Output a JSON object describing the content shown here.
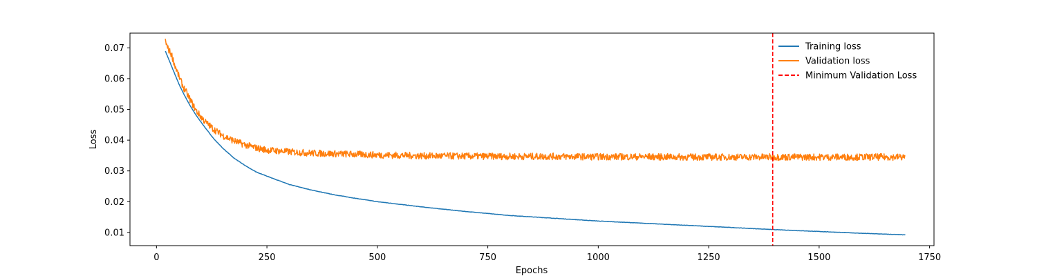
{
  "chart_data": {
    "type": "line",
    "title": "",
    "xlabel": "Epochs",
    "ylabel": "Loss",
    "xlim": [
      -60,
      1760
    ],
    "ylim": [
      0.0057,
      0.0748
    ],
    "xticks": [
      0,
      250,
      500,
      750,
      1000,
      1250,
      1500,
      1750
    ],
    "xtick_labels": [
      "0",
      "250",
      "500",
      "750",
      "1000",
      "1250",
      "1500",
      "1750"
    ],
    "yticks": [
      0.01,
      0.02,
      0.03,
      0.04,
      0.05,
      0.06,
      0.07
    ],
    "ytick_labels": [
      "0.01",
      "0.02",
      "0.03",
      "0.04",
      "0.05",
      "0.06",
      "0.07"
    ],
    "grid": false,
    "legend_position": "top-right",
    "series": [
      {
        "name": "Training loss",
        "color": "#1f77b4",
        "x": [
          20,
          30,
          40,
          50,
          60,
          75,
          90,
          110,
          130,
          150,
          175,
          200,
          225,
          250,
          300,
          350,
          400,
          450,
          500,
          600,
          700,
          800,
          900,
          1000,
          1100,
          1200,
          1300,
          1400,
          1500,
          1600,
          1695
        ],
        "y": [
          0.069,
          0.0655,
          0.062,
          0.0585,
          0.0555,
          0.0515,
          0.048,
          0.0441,
          0.0404,
          0.0374,
          0.0342,
          0.0318,
          0.0297,
          0.0283,
          0.0256,
          0.0238,
          0.0223,
          0.0211,
          0.02,
          0.0183,
          0.0168,
          0.0155,
          0.0146,
          0.0137,
          0.013,
          0.0123,
          0.0116,
          0.0109,
          0.0103,
          0.0097,
          0.0092
        ]
      },
      {
        "name": "Validation loss",
        "color": "#ff7f0e",
        "x": [
          20,
          25,
          30,
          35,
          40,
          50,
          60,
          75,
          90,
          110,
          130,
          150,
          175,
          200,
          225,
          250,
          300,
          350,
          400,
          450,
          500,
          600,
          700,
          800,
          900,
          1000,
          1100,
          1200,
          1300,
          1400,
          1500,
          1600,
          1695
        ],
        "y": [
          0.0725,
          0.07,
          0.0688,
          0.0675,
          0.065,
          0.061,
          0.0575,
          0.0535,
          0.0495,
          0.046,
          0.0435,
          0.0415,
          0.0398,
          0.0385,
          0.0375,
          0.0368,
          0.0362,
          0.0358,
          0.0356,
          0.0354,
          0.0352,
          0.0349,
          0.0348,
          0.0347,
          0.0347,
          0.0346,
          0.0346,
          0.0345,
          0.0345,
          0.0345,
          0.0345,
          0.0345,
          0.0345
        ]
      }
    ],
    "vline": {
      "name": "Minimum Validation Loss",
      "x": 1395,
      "color": "#ff0000",
      "style": "dashed"
    }
  }
}
